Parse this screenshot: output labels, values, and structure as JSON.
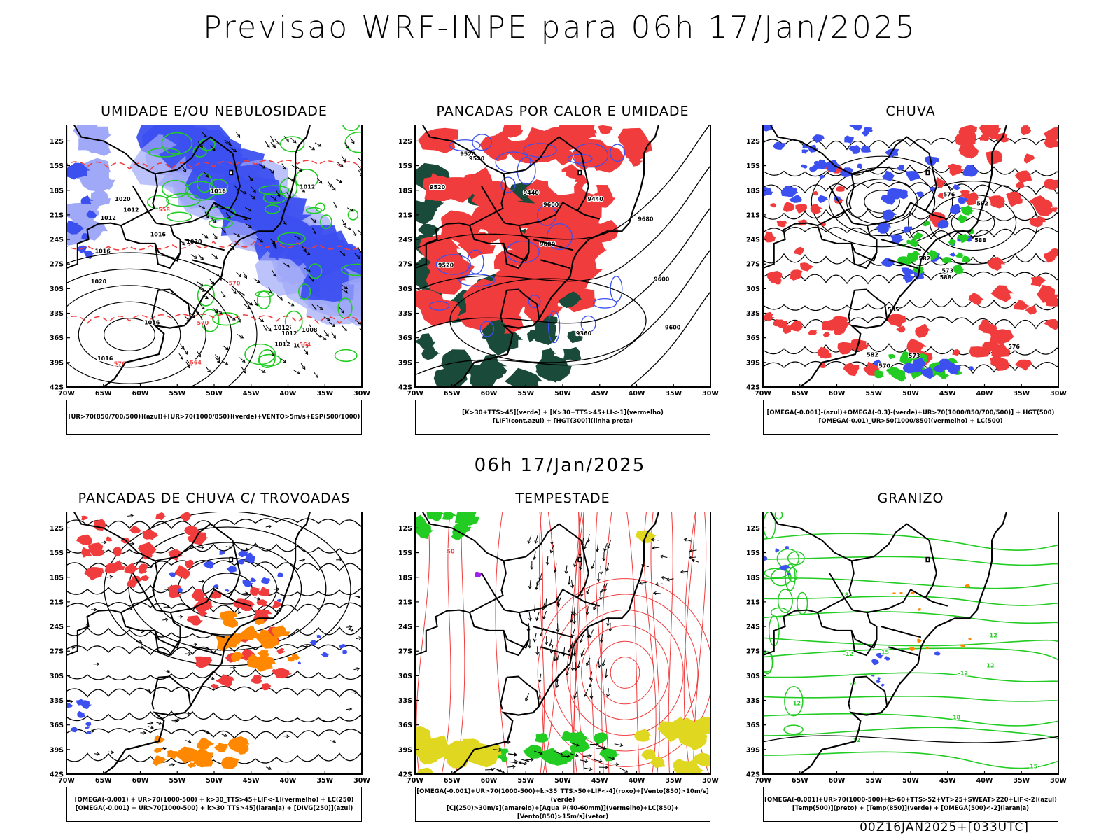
{
  "header": {
    "title": "Previsao WRF-INPE  para 06h 17/Jan/2025",
    "subtitle": "06h 17/Jan/2025"
  },
  "footer": {
    "run": "00Z16JAN2025+[033UTC]"
  },
  "axes": {
    "lat_ticks": [
      "12S",
      "15S",
      "18S",
      "21S",
      "24S",
      "27S",
      "30S",
      "33S",
      "36S",
      "39S",
      "42S"
    ],
    "lon_ticks": [
      "70W",
      "65W",
      "60W",
      "55W",
      "50W",
      "45W",
      "40W",
      "35W",
      "30W"
    ]
  },
  "colors": {
    "blue": "#3c50f0",
    "lightblue": "#a0a8f8",
    "green": "#22cc22",
    "red": "#f03c3c",
    "darkgreen": "#1a4a3a",
    "orange": "#ff8800",
    "yellow": "#e0d820",
    "purple": "#a020f0"
  },
  "panels": [
    {
      "title": "UMIDADE E/OU NEBULOSIDADE",
      "legend": [
        "[UR>70(850/700/500)](azul)+[UR>70(1000/850)](verde)+VENTO>5m/s+ESP(500/1000)"
      ],
      "contour_labels": [
        "1012",
        "1012",
        "1016",
        "1016",
        "1008",
        "1012",
        "1016",
        "1016",
        "1020",
        "1016",
        "1020",
        "1012",
        "1008",
        "1012",
        "1012",
        "1016",
        "1020",
        "570",
        "576",
        "564",
        "558",
        "564",
        "570"
      ]
    },
    {
      "title": "PANCADAS POR CALOR E UMIDADE",
      "legend": [
        "[K>30+TTS>45](verde) + [K>30+TTS>45+LI<-1](vermelho)",
        "[LIF](cont.azul) + [HGT(300)](linha preta)"
      ],
      "contour_labels": [
        "9600",
        "9680",
        "9680",
        "9600",
        "9520",
        "9520",
        "9520",
        "9440",
        "9360",
        "9520",
        "9440",
        "9600"
      ]
    },
    {
      "title": "CHUVA",
      "legend": [
        "[OMEGA(-0.001)-(azul)+OMEGA(-0.3)-(verde)+UR>70(1000/850/700/500)] + HGT(500)",
        "[OMEGA(-0.01)_UR>50(1000/850)(vermelho) + LC(500)"
      ],
      "contour_labels": [
        "582",
        "588",
        "582",
        "576",
        "588",
        "585",
        "576",
        "573",
        "582",
        "570",
        "573"
      ]
    },
    {
      "title": "PANCADAS DE CHUVA C/ TROVOADAS",
      "legend": [
        "[OMEGA(-0.001) + UR>70(1000-500) + k>30_TTS>45+LIF<-1](vermelho) + LC(250)",
        "[OMEGA(-0.001) + UR>70(1000-500) + k>30_TTS>45](laranja) + [DIVG(250)](azul)"
      ],
      "contour_labels": []
    },
    {
      "title": "TEMPESTADE",
      "legend": [
        "[OMEGA(-0.001)+UR>70(1000-500)+k>35_TTS>50+LIF<-4](roxo)+[Vento(850)>10m/s](verde)",
        "[CJ(250)>30m/s](amarelo)+[Agua_P(40-60mm)](vermelho)+LC(850)+[Vento(850)>15m/s](vetor)"
      ],
      "contour_labels": [
        "50"
      ]
    },
    {
      "title": "GRANIZO",
      "legend": [
        "[OMEGA(-0.001)+UR>70(1000-500)+k>60+TTS>52+VT>25+SWEAT>220+LIF<-2](azul)",
        "[Temp(500)](preto) + [Temp(850)](verde) + [OMEGA(500)<-2](laranja)"
      ],
      "contour_labels": [
        "-12",
        "12",
        "12",
        "15",
        "18",
        "-12",
        "-9",
        "15",
        "18",
        "12",
        "-12"
      ]
    }
  ]
}
